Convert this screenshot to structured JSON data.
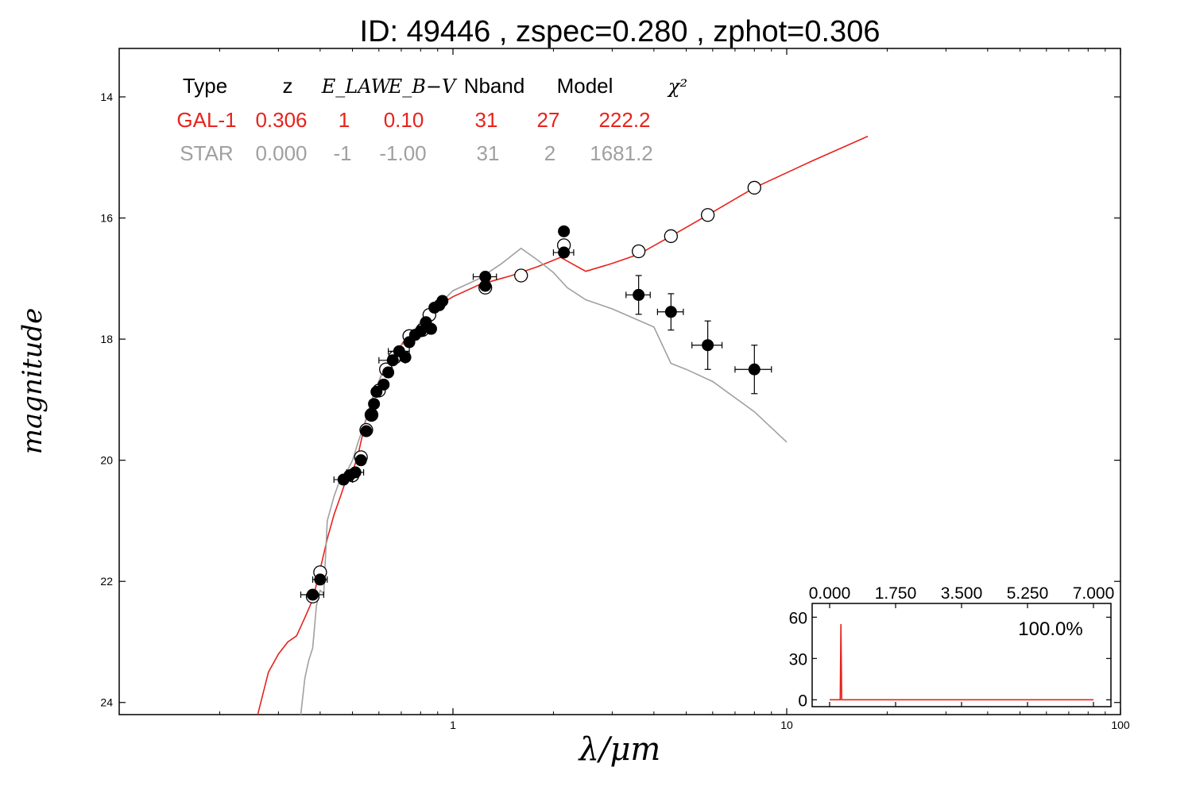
{
  "chart_data": [
    {
      "type": "scatter",
      "title": "ID:  49446 , zspec=0.280 , zphot=0.306",
      "xlabel": "λ/μm",
      "ylabel": "magnitude",
      "xscale": "log",
      "xlim": [
        0.1,
        100
      ],
      "ylim": [
        24.2,
        13.2
      ],
      "y_inverted": true,
      "x_ticks": [
        1,
        10,
        100
      ],
      "x_tick_labels": [
        "1",
        "10",
        "100"
      ],
      "y_ticks": [
        14,
        16,
        18,
        20,
        22,
        24
      ],
      "y_tick_labels": [
        "14",
        "16",
        "18",
        "20",
        "22",
        "24"
      ],
      "grid": false,
      "fit_table": {
        "headers": [
          "Type",
          "z",
          "E_LAW",
          "E_B−V",
          "Nband",
          "Model",
          "χ²"
        ],
        "rows": [
          {
            "color": "#e8221c",
            "cells": [
              "GAL-1",
              "0.306",
              "1",
              "0.10",
              "31",
              "27",
              "222.2"
            ]
          },
          {
            "color": "#a0a0a0",
            "cells": [
              "STAR",
              "0.000",
              "-1",
              "-1.00",
              "31",
              "2",
              "1681.2"
            ]
          }
        ]
      },
      "series": [
        {
          "name": "GAL-1",
          "kind": "line",
          "color": "#e8221c",
          "points": [
            [
              0.26,
              24.2
            ],
            [
              0.28,
              23.5
            ],
            [
              0.3,
              23.2
            ],
            [
              0.32,
              23.0
            ],
            [
              0.34,
              22.9
            ],
            [
              0.36,
              22.6
            ],
            [
              0.38,
              22.3
            ],
            [
              0.4,
              21.8
            ],
            [
              0.42,
              21.3
            ],
            [
              0.44,
              20.9
            ],
            [
              0.46,
              20.6
            ],
            [
              0.48,
              20.3
            ],
            [
              0.5,
              20.2
            ],
            [
              0.52,
              19.9
            ],
            [
              0.55,
              19.3
            ],
            [
              0.58,
              18.9
            ],
            [
              0.62,
              18.5
            ],
            [
              0.66,
              18.3
            ],
            [
              0.72,
              18.0
            ],
            [
              0.8,
              17.75
            ],
            [
              0.9,
              17.45
            ],
            [
              1.0,
              17.3
            ],
            [
              1.2,
              17.1
            ],
            [
              1.5,
              16.95
            ],
            [
              1.8,
              16.8
            ],
            [
              2.1,
              16.65
            ],
            [
              2.5,
              16.88
            ],
            [
              3.0,
              16.75
            ],
            [
              3.6,
              16.6
            ],
            [
              4.5,
              16.3
            ],
            [
              5.8,
              15.95
            ],
            [
              8.0,
              15.5
            ],
            [
              12.0,
              15.05
            ],
            [
              17.5,
              14.65
            ]
          ]
        },
        {
          "name": "STAR",
          "kind": "line",
          "color": "#a0a0a0",
          "points": [
            [
              0.35,
              24.2
            ],
            [
              0.36,
              23.6
            ],
            [
              0.37,
              23.3
            ],
            [
              0.38,
              23.1
            ],
            [
              0.39,
              22.4
            ],
            [
              0.4,
              22.15
            ],
            [
              0.41,
              22.2
            ],
            [
              0.42,
              21.0
            ],
            [
              0.44,
              20.6
            ],
            [
              0.46,
              20.3
            ],
            [
              0.48,
              20.2
            ],
            [
              0.5,
              20.0
            ],
            [
              0.52,
              19.7
            ],
            [
              0.55,
              19.3
            ],
            [
              0.58,
              18.9
            ],
            [
              0.62,
              18.5
            ],
            [
              0.66,
              18.4
            ],
            [
              0.7,
              18.1
            ],
            [
              0.75,
              18.0
            ],
            [
              0.8,
              17.7
            ],
            [
              0.9,
              17.45
            ],
            [
              1.0,
              17.2
            ],
            [
              1.2,
              17.0
            ],
            [
              1.4,
              16.75
            ],
            [
              1.6,
              16.5
            ],
            [
              1.8,
              16.7
            ],
            [
              2.0,
              16.9
            ],
            [
              2.2,
              17.15
            ],
            [
              2.5,
              17.35
            ],
            [
              3.0,
              17.5
            ],
            [
              4.0,
              17.8
            ],
            [
              4.5,
              18.4
            ],
            [
              5.0,
              18.5
            ],
            [
              6.0,
              18.7
            ],
            [
              8.0,
              19.2
            ],
            [
              10.0,
              19.7
            ]
          ]
        },
        {
          "name": "model magnitudes",
          "kind": "open-markers",
          "color": "#000000",
          "points": [
            [
              0.38,
              22.25
            ],
            [
              0.4,
              21.85
            ],
            [
              0.5,
              20.25
            ],
            [
              0.53,
              19.95
            ],
            [
              0.55,
              19.5
            ],
            [
              0.57,
              19.25
            ],
            [
              0.6,
              18.85
            ],
            [
              0.63,
              18.5
            ],
            [
              0.67,
              18.3
            ],
            [
              0.74,
              17.95
            ],
            [
              0.81,
              17.85
            ],
            [
              0.85,
              17.6
            ],
            [
              1.25,
              17.15
            ],
            [
              1.6,
              16.95
            ],
            [
              2.15,
              16.45
            ],
            [
              3.6,
              16.55
            ],
            [
              4.5,
              16.3
            ],
            [
              5.8,
              15.95
            ],
            [
              8.0,
              15.5
            ]
          ]
        },
        {
          "name": "observed magnitudes",
          "kind": "filled-markers",
          "color": "#000000",
          "points": [
            {
              "x": 0.38,
              "y": 22.22,
              "xerr": [
                0.35,
                0.41
              ]
            },
            {
              "x": 0.4,
              "y": 21.97,
              "xerr": [
                0.38,
                0.42
              ]
            },
            {
              "x": 0.47,
              "y": 20.32,
              "xerr": [
                0.44,
                0.5
              ]
            },
            {
              "x": 0.49,
              "y": 20.25
            },
            {
              "x": 0.51,
              "y": 20.2,
              "xerr": [
                0.48,
                0.54
              ]
            },
            {
              "x": 0.53,
              "y": 20.0
            },
            {
              "x": 0.55,
              "y": 19.52
            },
            {
              "x": 0.57,
              "y": 19.25
            },
            {
              "x": 0.58,
              "y": 19.07
            },
            {
              "x": 0.59,
              "y": 18.87
            },
            {
              "x": 0.62,
              "y": 18.75
            },
            {
              "x": 0.64,
              "y": 18.55
            },
            {
              "x": 0.66,
              "y": 18.35,
              "xerr": [
                0.6,
                0.72
              ]
            },
            {
              "x": 0.69,
              "y": 18.2,
              "xerr": [
                0.64,
                0.74
              ]
            },
            {
              "x": 0.72,
              "y": 18.3
            },
            {
              "x": 0.74,
              "y": 18.05
            },
            {
              "x": 0.77,
              "y": 17.93
            },
            {
              "x": 0.8,
              "y": 17.87
            },
            {
              "x": 0.83,
              "y": 17.72
            },
            {
              "x": 0.86,
              "y": 17.83
            },
            {
              "x": 0.88,
              "y": 17.48
            },
            {
              "x": 0.91,
              "y": 17.44
            },
            {
              "x": 0.93,
              "y": 17.37
            },
            {
              "x": 1.25,
              "y": 16.97,
              "xerr": [
                1.15,
                1.35
              ]
            },
            {
              "x": 1.25,
              "y": 17.12
            },
            {
              "x": 2.15,
              "y": 16.22
            },
            {
              "x": 2.15,
              "y": 16.57,
              "xerr": [
                2.0,
                2.3
              ]
            },
            {
              "x": 3.6,
              "y": 17.27,
              "xerr": [
                3.3,
                3.9
              ],
              "yerr": [
                16.95,
                17.59
              ]
            },
            {
              "x": 4.5,
              "y": 17.55,
              "xerr": [
                4.1,
                4.9
              ],
              "yerr": [
                17.25,
                17.85
              ]
            },
            {
              "x": 5.8,
              "y": 18.1,
              "xerr": [
                5.2,
                6.4
              ],
              "yerr": [
                17.7,
                18.5
              ]
            },
            {
              "x": 8.0,
              "y": 18.5,
              "xerr": [
                7.0,
                9.0
              ],
              "yerr": [
                18.1,
                18.9
              ]
            }
          ]
        }
      ]
    },
    {
      "type": "line",
      "inset": "bottom-right",
      "xlim": [
        0,
        7
      ],
      "ylim": [
        -5,
        70
      ],
      "x_ticks": [
        0,
        1.75,
        3.5,
        5.25,
        7
      ],
      "x_tick_labels": [
        "0.000",
        "1.750",
        "3.500",
        "5.250",
        "7.000"
      ],
      "y_ticks": [
        0,
        30,
        60
      ],
      "y_tick_labels": [
        "0",
        "30",
        "60"
      ],
      "annotation": "100.0%",
      "series": [
        {
          "color": "#e8221c",
          "points": [
            [
              0,
              0
            ],
            [
              0.28,
              0
            ],
            [
              0.3,
              55
            ],
            [
              0.32,
              0
            ],
            [
              7,
              0
            ]
          ]
        }
      ]
    }
  ]
}
